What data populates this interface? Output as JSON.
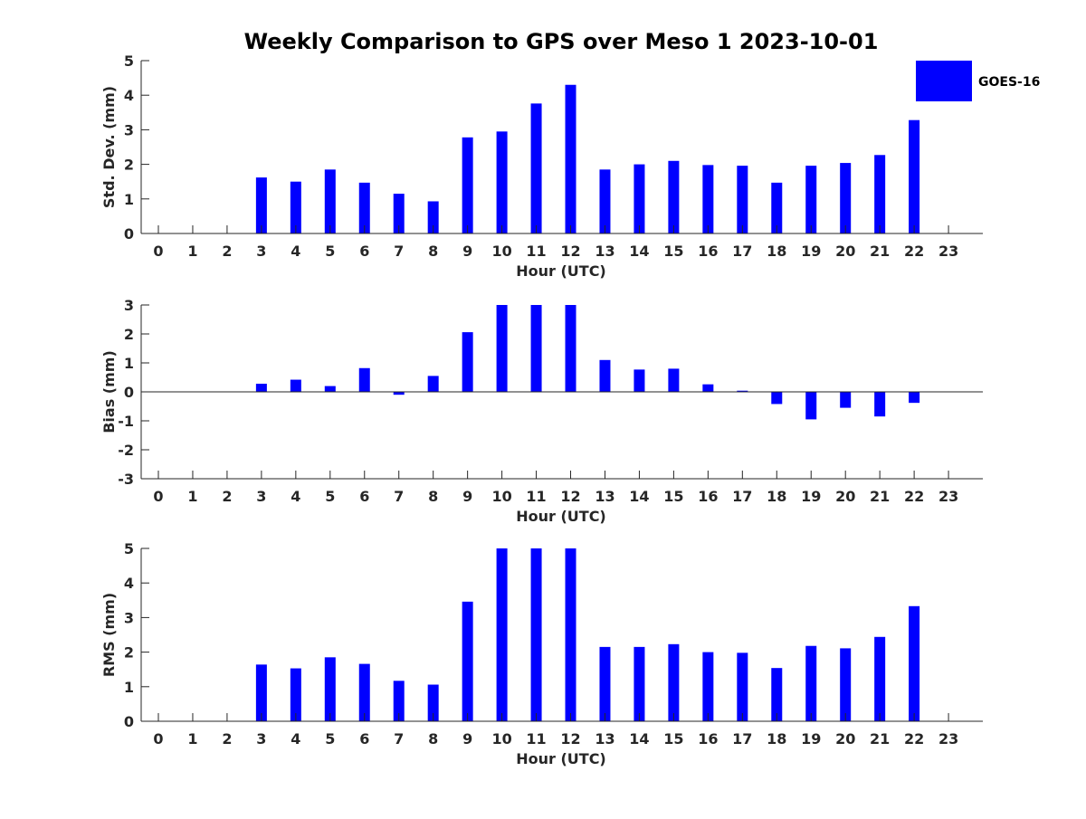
{
  "figure": {
    "title": "Weekly Comparison to GPS over Meso 1 2023-10-01",
    "bar_color": "#0000ff",
    "legend": {
      "label": "GOES-16",
      "placement": "top-right"
    }
  },
  "chart_data": [
    {
      "type": "bar",
      "xlabel": "Hour (UTC)",
      "ylabel": "Std. Dev. (mm)",
      "ylim": [
        0,
        5
      ],
      "yticks": [
        0,
        1,
        2,
        3,
        4,
        5
      ],
      "categories": [
        "0",
        "1",
        "2",
        "3",
        "4",
        "5",
        "6",
        "7",
        "8",
        "9",
        "10",
        "11",
        "12",
        "13",
        "14",
        "15",
        "16",
        "17",
        "18",
        "19",
        "20",
        "21",
        "22",
        "23"
      ],
      "series": [
        {
          "name": "GOES-16",
          "values": [
            null,
            null,
            null,
            1.62,
            1.5,
            1.85,
            1.47,
            1.15,
            0.93,
            2.78,
            2.95,
            3.76,
            4.3,
            1.85,
            2.0,
            2.1,
            1.98,
            1.96,
            1.47,
            1.96,
            2.04,
            2.27,
            3.28,
            null
          ]
        }
      ]
    },
    {
      "type": "bar",
      "xlabel": "Hour (UTC)",
      "ylabel": "Bias (mm)",
      "ylim": [
        -3,
        3
      ],
      "yticks": [
        -3,
        -2,
        -1,
        0,
        1,
        2,
        3
      ],
      "categories": [
        "0",
        "1",
        "2",
        "3",
        "4",
        "5",
        "6",
        "7",
        "8",
        "9",
        "10",
        "11",
        "12",
        "13",
        "14",
        "15",
        "16",
        "17",
        "18",
        "19",
        "20",
        "21",
        "22",
        "23"
      ],
      "series": [
        {
          "name": "GOES-16",
          "values": [
            null,
            null,
            null,
            0.28,
            0.42,
            0.2,
            0.82,
            -0.1,
            0.55,
            2.06,
            3.0,
            3.0,
            3.0,
            1.1,
            0.77,
            0.8,
            0.26,
            0.04,
            -0.42,
            -0.95,
            -0.55,
            -0.85,
            -0.38,
            null
          ]
        }
      ]
    },
    {
      "type": "bar",
      "xlabel": "Hour (UTC)",
      "ylabel": "RMS (mm)",
      "ylim": [
        0,
        5
      ],
      "yticks": [
        0,
        1,
        2,
        3,
        4,
        5
      ],
      "categories": [
        "0",
        "1",
        "2",
        "3",
        "4",
        "5",
        "6",
        "7",
        "8",
        "9",
        "10",
        "11",
        "12",
        "13",
        "14",
        "15",
        "16",
        "17",
        "18",
        "19",
        "20",
        "21",
        "22",
        "23"
      ],
      "series": [
        {
          "name": "GOES-16",
          "values": [
            null,
            null,
            null,
            1.64,
            1.53,
            1.85,
            1.66,
            1.17,
            1.06,
            3.46,
            5.0,
            5.0,
            5.0,
            2.15,
            2.15,
            2.23,
            2.0,
            1.98,
            1.54,
            2.18,
            2.11,
            2.44,
            3.33,
            null
          ]
        }
      ]
    }
  ]
}
